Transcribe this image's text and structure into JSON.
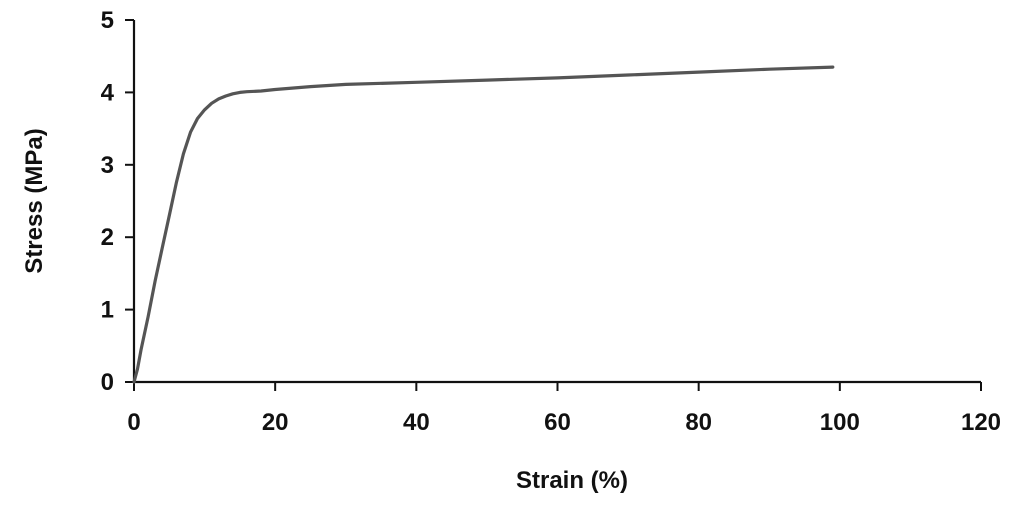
{
  "chart_data": {
    "type": "line",
    "title": "",
    "xlabel": "Strain (%)",
    "ylabel": "Stress (MPa)",
    "xlim": [
      0,
      120
    ],
    "ylim": [
      0,
      5
    ],
    "x_ticks": [
      0,
      20,
      40,
      60,
      80,
      100,
      120
    ],
    "y_ticks": [
      0,
      1,
      2,
      3,
      4,
      5
    ],
    "grid": false,
    "legend": "none",
    "series": [
      {
        "color": "#555555",
        "x": [
          0,
          0.5,
          1,
          2,
          3,
          4,
          5,
          6,
          7,
          8,
          9,
          10,
          11,
          12,
          13,
          14,
          15,
          16,
          18,
          20,
          25,
          30,
          40,
          50,
          60,
          70,
          80,
          90,
          99
        ],
        "y": [
          0,
          0.18,
          0.45,
          0.9,
          1.4,
          1.85,
          2.3,
          2.75,
          3.15,
          3.45,
          3.64,
          3.76,
          3.85,
          3.91,
          3.95,
          3.98,
          4.0,
          4.01,
          4.02,
          4.04,
          4.08,
          4.11,
          4.14,
          4.17,
          4.2,
          4.24,
          4.28,
          4.32,
          4.35
        ]
      }
    ]
  }
}
